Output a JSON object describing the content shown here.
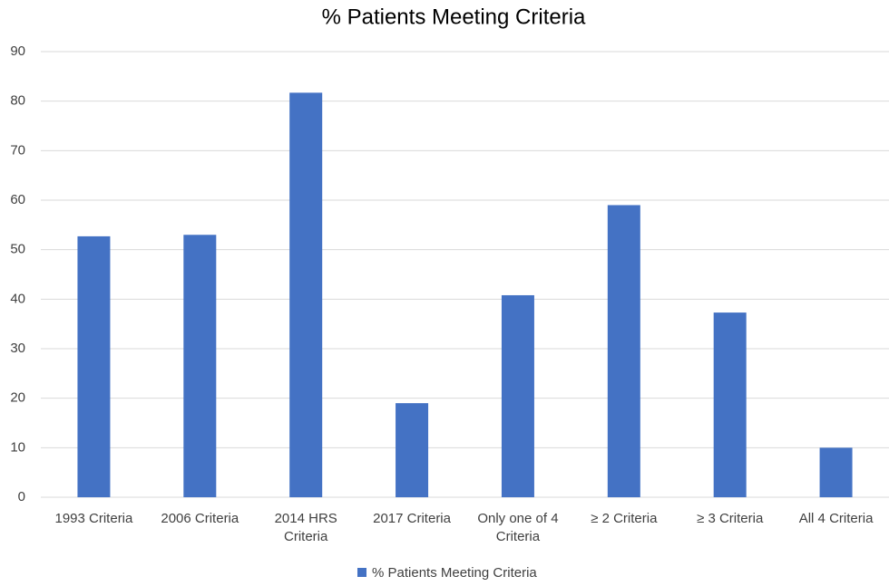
{
  "chart_data": {
    "type": "bar",
    "title": "% Patients Meeting Criteria",
    "categories": [
      "1993 Criteria",
      "2006 Criteria",
      "2014 HRS Criteria",
      "2017 Criteria",
      "Only one of 4 Criteria",
      "≥ 2 Criteria",
      "≥ 3 Criteria",
      "All 4 Criteria"
    ],
    "series": [
      {
        "name": "% Patients Meeting Criteria",
        "color": "#4472c4",
        "values": [
          52.7,
          53,
          81.7,
          19,
          40.8,
          59,
          37.3,
          10
        ]
      }
    ],
    "ylim": [
      0,
      90
    ],
    "yticks": [
      0,
      10,
      20,
      30,
      40,
      50,
      60,
      70,
      80,
      90
    ],
    "grid": true,
    "legend": "bottom"
  }
}
